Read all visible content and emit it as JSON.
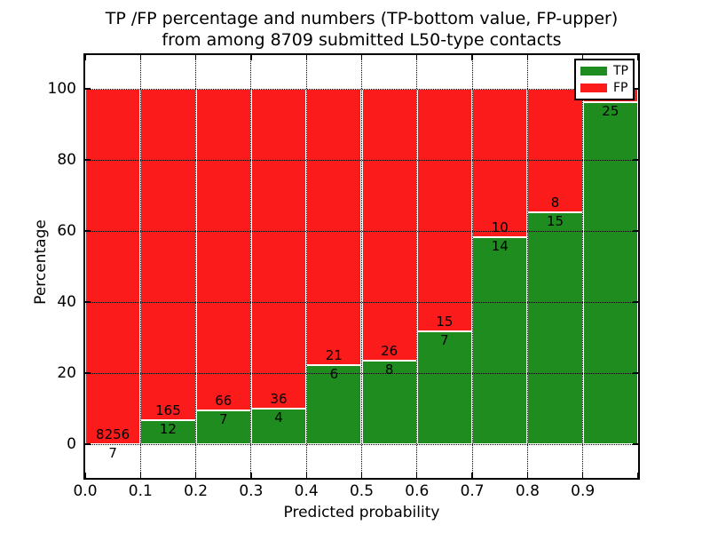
{
  "figure": {
    "title_line1": "TP /FP percentage and numbers (TP-bottom value, FP-upper)",
    "title_line2": "from among 8709 submitted L50-type contacts",
    "xlabel": "Predicted probability",
    "ylabel": "Percentage"
  },
  "legend": {
    "items": [
      {
        "label": "TP",
        "color": "#1e8c1e"
      },
      {
        "label": "FP",
        "color": "#fb1b1b"
      }
    ]
  },
  "chart_data": {
    "type": "bar",
    "subtype": "stacked_percentage_histogram",
    "title": "TP /FP percentage and numbers (TP-bottom value, FP-upper) from among 8709 submitted L50-type contacts",
    "xlabel": "Predicted probability",
    "ylabel": "Percentage",
    "total_submitted_contacts": 8709,
    "x_tick_labels": [
      "0.0",
      "0.1",
      "0.2",
      "0.3",
      "0.4",
      "0.5",
      "0.6",
      "0.7",
      "0.8",
      "0.9"
    ],
    "y_tick_values": [
      0,
      20,
      40,
      60,
      80,
      100
    ],
    "xlim": [
      0.0,
      1.0
    ],
    "ylim_pct": [
      -9.5,
      109.5
    ],
    "grid": true,
    "grid_style": "dotted",
    "legend_position": "upper right",
    "series": [
      {
        "name": "TP",
        "color": "#1e8c1e",
        "position": "bottom"
      },
      {
        "name": "FP",
        "color": "#fb1b1b",
        "position": "top"
      }
    ],
    "bins": [
      {
        "x_range": [
          0.0,
          0.1
        ],
        "tp_count": 7,
        "fp_count": 8256,
        "tp_pct": 0.08
      },
      {
        "x_range": [
          0.1,
          0.2
        ],
        "tp_count": 12,
        "fp_count": 165,
        "tp_pct": 6.78
      },
      {
        "x_range": [
          0.2,
          0.3
        ],
        "tp_count": 7,
        "fp_count": 66,
        "tp_pct": 9.59
      },
      {
        "x_range": [
          0.3,
          0.4
        ],
        "tp_count": 4,
        "fp_count": 36,
        "tp_pct": 10.0
      },
      {
        "x_range": [
          0.4,
          0.5
        ],
        "tp_count": 6,
        "fp_count": 21,
        "tp_pct": 22.22
      },
      {
        "x_range": [
          0.5,
          0.6
        ],
        "tp_count": 8,
        "fp_count": 26,
        "tp_pct": 23.53
      },
      {
        "x_range": [
          0.6,
          0.7
        ],
        "tp_count": 7,
        "fp_count": 15,
        "tp_pct": 31.82
      },
      {
        "x_range": [
          0.7,
          0.8
        ],
        "tp_count": 14,
        "fp_count": 10,
        "tp_pct": 58.33
      },
      {
        "x_range": [
          0.8,
          0.9
        ],
        "tp_count": 15,
        "fp_count": 8,
        "tp_pct": 65.22
      },
      {
        "x_range": [
          0.9,
          1.0
        ],
        "tp_count": 25,
        "fp_count": null,
        "tp_pct": 96.15,
        "fp_label_hidden_behind_legend": true
      }
    ]
  }
}
